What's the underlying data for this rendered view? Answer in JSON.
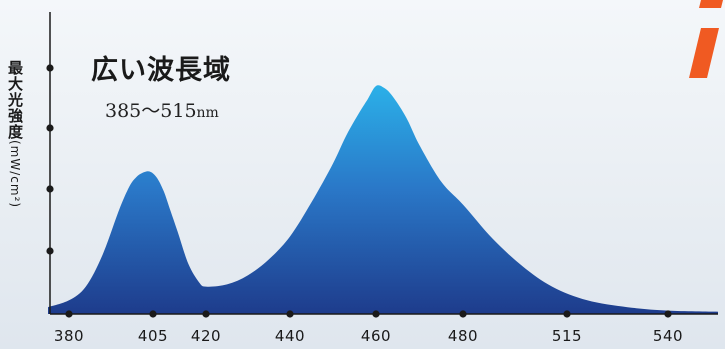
{
  "chart_data": {
    "type": "area",
    "title": "広い波長域",
    "subtitle_value": "385〜515",
    "subtitle_unit": "nm",
    "ylabel": "最大光強度",
    "ylabel_unit": "(mW/cm²)",
    "x_ticks": [
      380,
      405,
      420,
      440,
      460,
      480,
      515,
      540
    ],
    "x": [
      375,
      380,
      385,
      390,
      395,
      398,
      400,
      402,
      404,
      406,
      408,
      410,
      412,
      415,
      418,
      420,
      425,
      430,
      435,
      440,
      445,
      450,
      453,
      456,
      458,
      460,
      462,
      464,
      467,
      470,
      475,
      480,
      490,
      500,
      510,
      520,
      530,
      540,
      560
    ],
    "values": [
      0.03,
      0.06,
      0.12,
      0.26,
      0.46,
      0.56,
      0.6,
      0.62,
      0.625,
      0.6,
      0.54,
      0.45,
      0.36,
      0.22,
      0.14,
      0.12,
      0.13,
      0.17,
      0.24,
      0.34,
      0.49,
      0.66,
      0.78,
      0.88,
      0.94,
      1.0,
      0.99,
      0.95,
      0.86,
      0.74,
      0.58,
      0.48,
      0.33,
      0.21,
      0.12,
      0.06,
      0.03,
      0.015,
      0.01
    ],
    "y_dots": 4,
    "colors": {
      "fill_top": "#29a8e4",
      "fill_bottom": "#1f3d8f",
      "axis": "#1a1a1a",
      "accent": "#f05a22"
    }
  }
}
